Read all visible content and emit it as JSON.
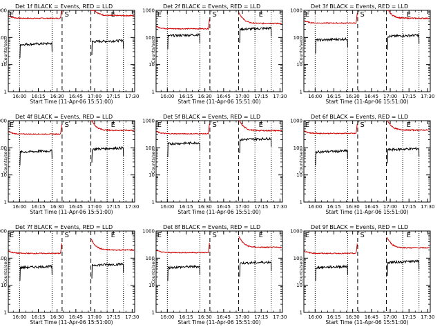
{
  "chart_data": {
    "type": "line",
    "layout": "3x3 grid of panels",
    "yscale": "log",
    "ylim": [
      1,
      1000
    ],
    "ylabel": "Counts/sec",
    "xlabel": "Start Time (11-Apr-06 15:51:00)",
    "x_ticks": [
      "16:00",
      "16:15",
      "16:30",
      "16:45",
      "17:00",
      "17:15",
      "17:30"
    ],
    "y_ticks": [
      "1",
      "10",
      "100",
      "1000"
    ],
    "xlim": [
      "15:51",
      "17:32"
    ],
    "vlines": {
      "dotted": [
        "16:00",
        "16:26",
        "17:10",
        "17:23"
      ],
      "dashed": [
        "16:34",
        "16:57"
      ]
    },
    "markers": [
      {
        "label": "E",
        "time": "15:52"
      },
      {
        "label": "S",
        "time": "16:36"
      },
      {
        "label": "E",
        "time": "17:13"
      }
    ],
    "series_colors": {
      "events": "#000000",
      "lld": "#d00000"
    },
    "panels": [
      {
        "title": "Det 1f BLACK = Events, RED = LLD",
        "events_pre": 55,
        "events_post": 70,
        "lld_pre": 510,
        "lld_post": 640
      },
      {
        "title": "Det 2f BLACK = Events, RED = LLD",
        "events_pre": 115,
        "events_post": 200,
        "lld_pre": 210,
        "lld_post": 330
      },
      {
        "title": "Det 3f BLACK = Events, RED = LLD",
        "events_pre": 80,
        "events_post": 110,
        "lld_pre": 340,
        "lld_post": 510
      },
      {
        "title": "Det 4f BLACK = Events, RED = LLD",
        "events_pre": 70,
        "events_post": 90,
        "lld_pre": 320,
        "lld_post": 440
      },
      {
        "title": "Det 5f BLACK = Events, RED = LLD",
        "events_pre": 140,
        "events_post": 200,
        "lld_pre": 330,
        "lld_post": 430
      },
      {
        "title": "Det 6f BLACK = Events, RED = LLD",
        "events_pre": 70,
        "events_post": 85,
        "lld_pre": 340,
        "lld_post": 450
      },
      {
        "title": "Det 7f BLACK = Events, RED = LLD",
        "events_pre": 45,
        "events_post": 55,
        "lld_pre": 150,
        "lld_post": 200
      },
      {
        "title": "Det 8f BLACK = Events, RED = LLD",
        "events_pre": 45,
        "events_post": 65,
        "lld_pre": 160,
        "lld_post": 250
      },
      {
        "title": "Det 9f BLACK = Events, RED = LLD",
        "events_pre": 45,
        "events_post": 70,
        "lld_pre": 150,
        "lld_post": 240
      }
    ]
  }
}
